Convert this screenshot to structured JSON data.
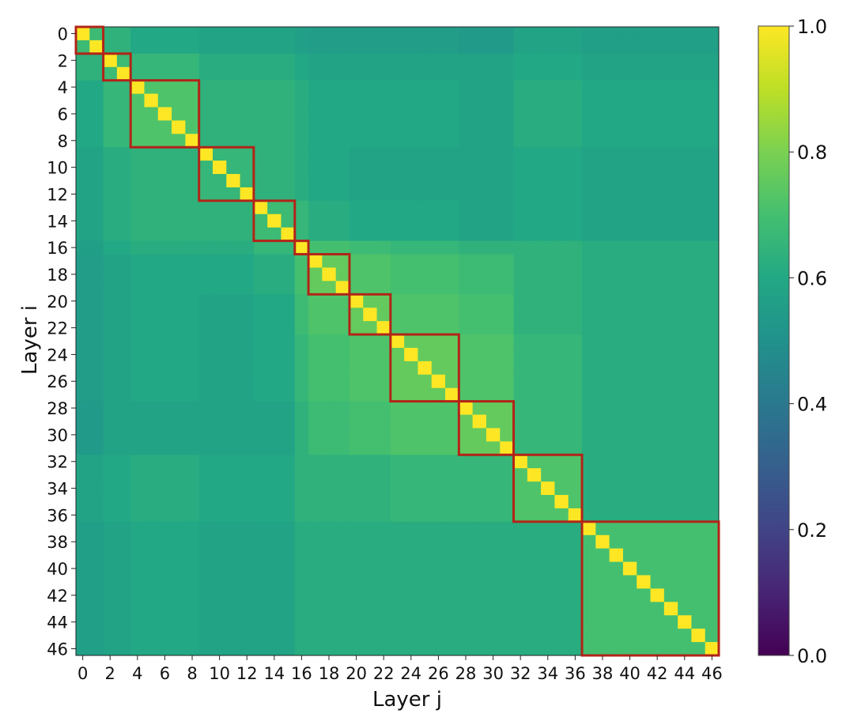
{
  "chart_data": {
    "type": "heatmap",
    "title": "",
    "xlabel": "Layer j",
    "ylabel": "Layer i",
    "n_layers": 47,
    "x_ticks": [
      "0",
      "2",
      "4",
      "6",
      "8",
      "10",
      "12",
      "14",
      "16",
      "18",
      "20",
      "22",
      "24",
      "26",
      "28",
      "30",
      "32",
      "34",
      "36",
      "38",
      "40",
      "42",
      "44",
      "46"
    ],
    "y_ticks": [
      "0",
      "2",
      "4",
      "6",
      "8",
      "10",
      "12",
      "14",
      "16",
      "18",
      "20",
      "22",
      "24",
      "26",
      "28",
      "30",
      "32",
      "34",
      "36",
      "38",
      "40",
      "42",
      "44",
      "46"
    ],
    "colormap": "viridis",
    "colorbar": {
      "range": [
        0.0,
        1.0
      ],
      "ticks": [
        "0.0",
        "0.2",
        "0.4",
        "0.6",
        "0.8",
        "1.0"
      ]
    },
    "diagonal_value": 1.0,
    "highlight_color": "#b22418",
    "blocks": [
      [
        0,
        1
      ],
      [
        2,
        3
      ],
      [
        4,
        8
      ],
      [
        9,
        12
      ],
      [
        13,
        15
      ],
      [
        16,
        16
      ],
      [
        17,
        19
      ],
      [
        20,
        22
      ],
      [
        23,
        27
      ],
      [
        28,
        31
      ],
      [
        32,
        36
      ],
      [
        37,
        46
      ]
    ],
    "block_mean_similarity": [
      [
        0.68,
        0.64,
        0.6,
        0.58,
        0.58,
        0.56,
        0.55,
        0.55,
        0.55,
        0.54,
        0.58,
        0.56
      ],
      [
        0.64,
        0.68,
        0.66,
        0.62,
        0.62,
        0.6,
        0.58,
        0.58,
        0.58,
        0.58,
        0.6,
        0.58
      ],
      [
        0.6,
        0.66,
        0.72,
        0.64,
        0.64,
        0.62,
        0.6,
        0.6,
        0.6,
        0.58,
        0.62,
        0.6
      ],
      [
        0.58,
        0.62,
        0.64,
        0.66,
        0.64,
        0.62,
        0.6,
        0.58,
        0.58,
        0.58,
        0.6,
        0.58
      ],
      [
        0.58,
        0.62,
        0.64,
        0.64,
        0.68,
        0.66,
        0.62,
        0.6,
        0.6,
        0.58,
        0.6,
        0.58
      ],
      [
        0.56,
        0.6,
        0.62,
        0.62,
        0.66,
        1.0,
        0.7,
        0.68,
        0.66,
        0.64,
        0.64,
        0.62
      ],
      [
        0.55,
        0.58,
        0.6,
        0.6,
        0.62,
        0.7,
        0.76,
        0.72,
        0.7,
        0.68,
        0.64,
        0.62
      ],
      [
        0.55,
        0.58,
        0.6,
        0.58,
        0.6,
        0.68,
        0.72,
        0.76,
        0.72,
        0.7,
        0.64,
        0.62
      ],
      [
        0.55,
        0.58,
        0.6,
        0.58,
        0.6,
        0.66,
        0.7,
        0.72,
        0.76,
        0.72,
        0.66,
        0.62
      ],
      [
        0.54,
        0.58,
        0.58,
        0.58,
        0.58,
        0.64,
        0.68,
        0.7,
        0.72,
        0.76,
        0.66,
        0.62
      ],
      [
        0.58,
        0.6,
        0.62,
        0.6,
        0.6,
        0.64,
        0.64,
        0.64,
        0.66,
        0.66,
        0.72,
        0.62
      ],
      [
        0.56,
        0.58,
        0.6,
        0.58,
        0.58,
        0.62,
        0.62,
        0.62,
        0.62,
        0.62,
        0.62,
        0.7
      ]
    ]
  }
}
